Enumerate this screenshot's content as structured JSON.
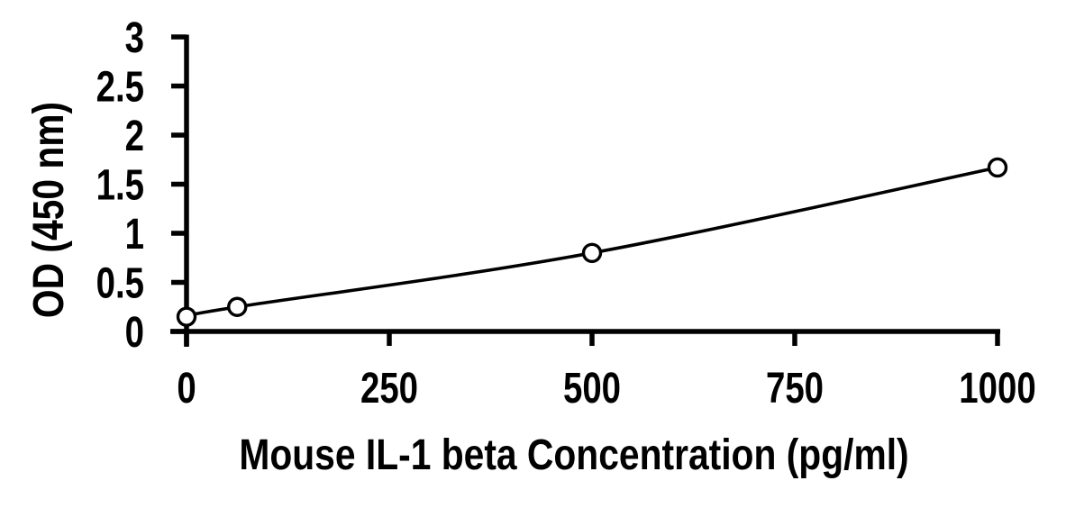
{
  "figure": {
    "background": "#ffffff",
    "foreground": "#000000"
  },
  "chart_data": {
    "type": "line",
    "title": "",
    "xlabel": "Mouse IL-1 beta Concentration (pg/ml)",
    "ylabel": "OD (450 nm)",
    "series": [
      {
        "x": [
          0,
          62.5,
          500,
          1000
        ],
        "y": [
          0.15,
          0.25,
          0.8,
          1.67
        ],
        "marker": "open-circle",
        "marker_fill": "#ffffff",
        "color": "#000000"
      }
    ],
    "xlim": [
      0,
      1000
    ],
    "ylim": [
      0,
      3
    ],
    "x_ticks": [
      0,
      250,
      500,
      750,
      1000
    ],
    "x_tick_labels": [
      "0",
      "250",
      "500",
      "750",
      "1000"
    ],
    "y_ticks": [
      0,
      0.5,
      1,
      1.5,
      2,
      2.5,
      3
    ],
    "y_tick_labels": [
      "0",
      "0.5",
      "1",
      "1.5",
      "2",
      "2.5",
      "3"
    ],
    "grid": false,
    "legend": "none",
    "axis_color": "#000000"
  }
}
